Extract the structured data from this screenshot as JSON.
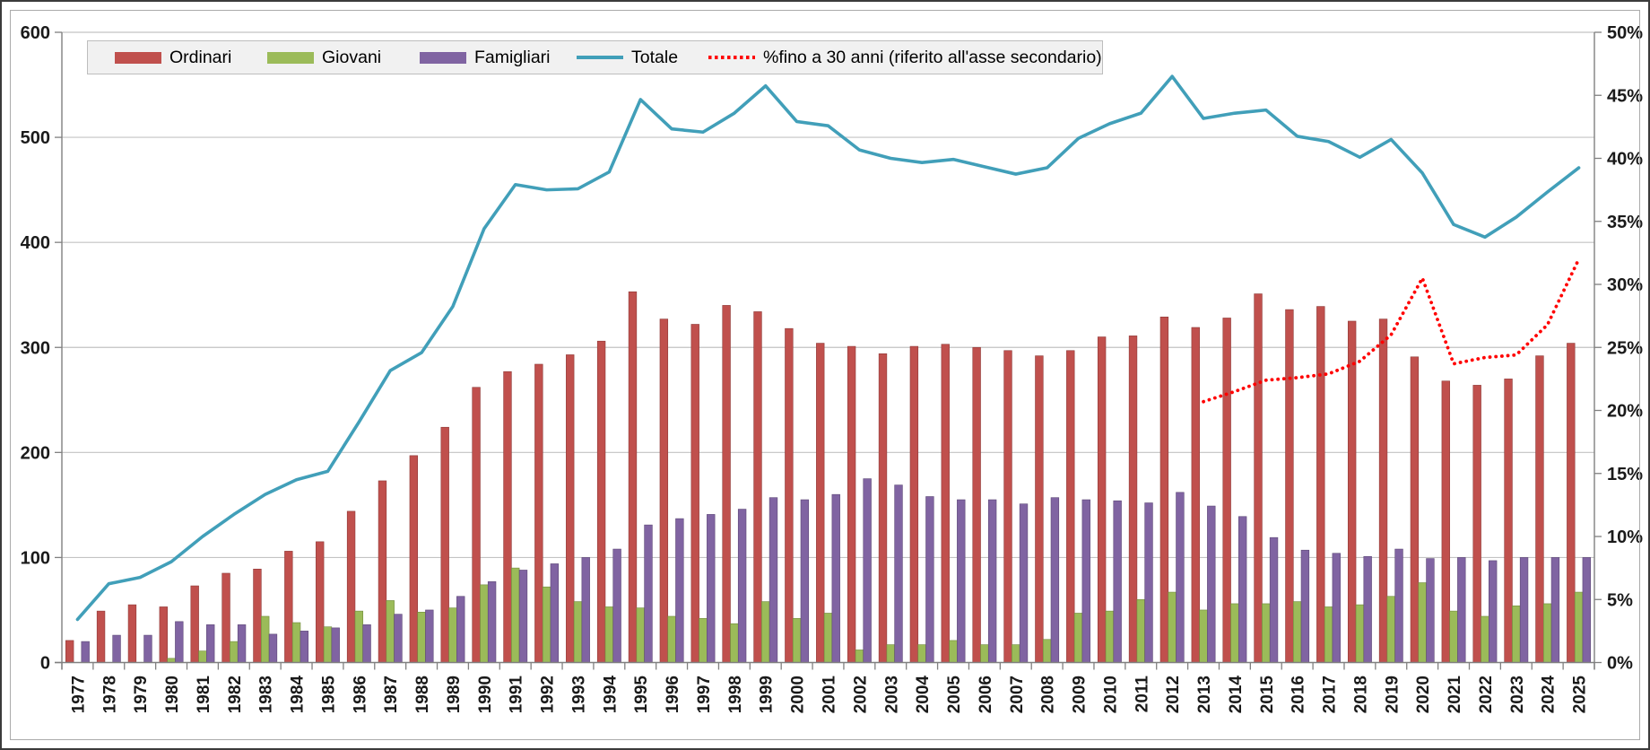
{
  "chart_data": {
    "type": "combo-bar-line",
    "x": [
      "1977",
      "1978",
      "1979",
      "1980",
      "1981",
      "1982",
      "1983",
      "1984",
      "1985",
      "1986",
      "1987",
      "1988",
      "1989",
      "1990",
      "1991",
      "1992",
      "1993",
      "1994",
      "1995",
      "1996",
      "1997",
      "1998",
      "1999",
      "2000",
      "2001",
      "2002",
      "2003",
      "2004",
      "2005",
      "2006",
      "2007",
      "2008",
      "2009",
      "2010",
      "2011",
      "2012",
      "2013",
      "2014",
      "2015",
      "2016",
      "2017",
      "2018",
      "2019",
      "2020",
      "2021",
      "2022",
      "2023",
      "2024",
      "2025"
    ],
    "left_axis": {
      "min": 0,
      "max": 600,
      "step": 100,
      "ticks": [
        "0",
        "100",
        "200",
        "300",
        "400",
        "500",
        "600"
      ]
    },
    "right_axis": {
      "min": 0,
      "max": 50,
      "step": 5,
      "ticks": [
        "0%",
        "5%",
        "10%",
        "15%",
        "20%",
        "25%",
        "30%",
        "35%",
        "40%",
        "45%",
        "50%"
      ]
    },
    "grid": "horizontal",
    "legend_position": "top-left",
    "series": [
      {
        "name": "Ordinari",
        "type": "bar",
        "axis": "left",
        "color": "#C0504D",
        "edge": "#8e3a38",
        "values": [
          21,
          49,
          55,
          53,
          73,
          85,
          89,
          106,
          115,
          144,
          173,
          197,
          224,
          262,
          277,
          284,
          293,
          306,
          353,
          327,
          322,
          340,
          334,
          318,
          304,
          301,
          294,
          301,
          303,
          300,
          297,
          292,
          297,
          310,
          311,
          329,
          319,
          328,
          351,
          336,
          339,
          325,
          327,
          291,
          268,
          264,
          270,
          292,
          304
        ]
      },
      {
        "name": "Giovani",
        "type": "bar",
        "axis": "left",
        "color": "#9BBB59",
        "edge": "#718a3e",
        "values": [
          0,
          0,
          0,
          4,
          11,
          20,
          44,
          38,
          34,
          49,
          59,
          48,
          52,
          74,
          90,
          72,
          58,
          53,
          52,
          44,
          42,
          37,
          58,
          42,
          47,
          12,
          17,
          17,
          21,
          17,
          17,
          22,
          47,
          49,
          60,
          67,
          50,
          56,
          56,
          58,
          53,
          55,
          63,
          76,
          49,
          44,
          54,
          56,
          67
        ]
      },
      {
        "name": "Famigliari",
        "type": "bar",
        "axis": "left",
        "color": "#8064A2",
        "edge": "#5d4876",
        "values": [
          20,
          26,
          26,
          39,
          36,
          36,
          27,
          30,
          33,
          36,
          46,
          50,
          63,
          77,
          88,
          94,
          100,
          108,
          131,
          137,
          141,
          146,
          157,
          155,
          160,
          175,
          169,
          158,
          155,
          155,
          151,
          157,
          155,
          154,
          152,
          162,
          149,
          139,
          119,
          107,
          104,
          101,
          108,
          99,
          100,
          97,
          100,
          100,
          100
        ]
      },
      {
        "name": "Totale",
        "type": "line",
        "axis": "left",
        "color": "#419FB9",
        "values": [
          41,
          75,
          81,
          96,
          120,
          141,
          160,
          174,
          182,
          229,
          278,
          295,
          339,
          413,
          455,
          450,
          451,
          467,
          536,
          508,
          505,
          523,
          549,
          515,
          511,
          488,
          480,
          476,
          479,
          472,
          465,
          471,
          499,
          513,
          523,
          558,
          518,
          523,
          526,
          501,
          496,
          481,
          498,
          466,
          417,
          405,
          424,
          448,
          471
        ]
      },
      {
        "name": "%fino a 30 anni (riferito all'asse secondario)",
        "type": "dotted-line",
        "axis": "right",
        "color": "#FF0000",
        "values": [
          null,
          null,
          null,
          null,
          null,
          null,
          null,
          null,
          null,
          null,
          null,
          null,
          null,
          null,
          null,
          null,
          null,
          null,
          null,
          null,
          null,
          null,
          null,
          null,
          null,
          null,
          null,
          null,
          null,
          null,
          null,
          null,
          null,
          null,
          null,
          null,
          20.7,
          21.5,
          22.4,
          22.6,
          22.9,
          23.9,
          26.0,
          30.5,
          23.7,
          24.2,
          24.4,
          26.8,
          32.0
        ]
      }
    ]
  },
  "legend": {
    "items": [
      {
        "label": "Ordinari"
      },
      {
        "label": "Giovani"
      },
      {
        "label": "Famigliari"
      },
      {
        "label": "Totale"
      },
      {
        "label": "%fino a 30 anni (riferito all'asse secondario)"
      }
    ]
  }
}
